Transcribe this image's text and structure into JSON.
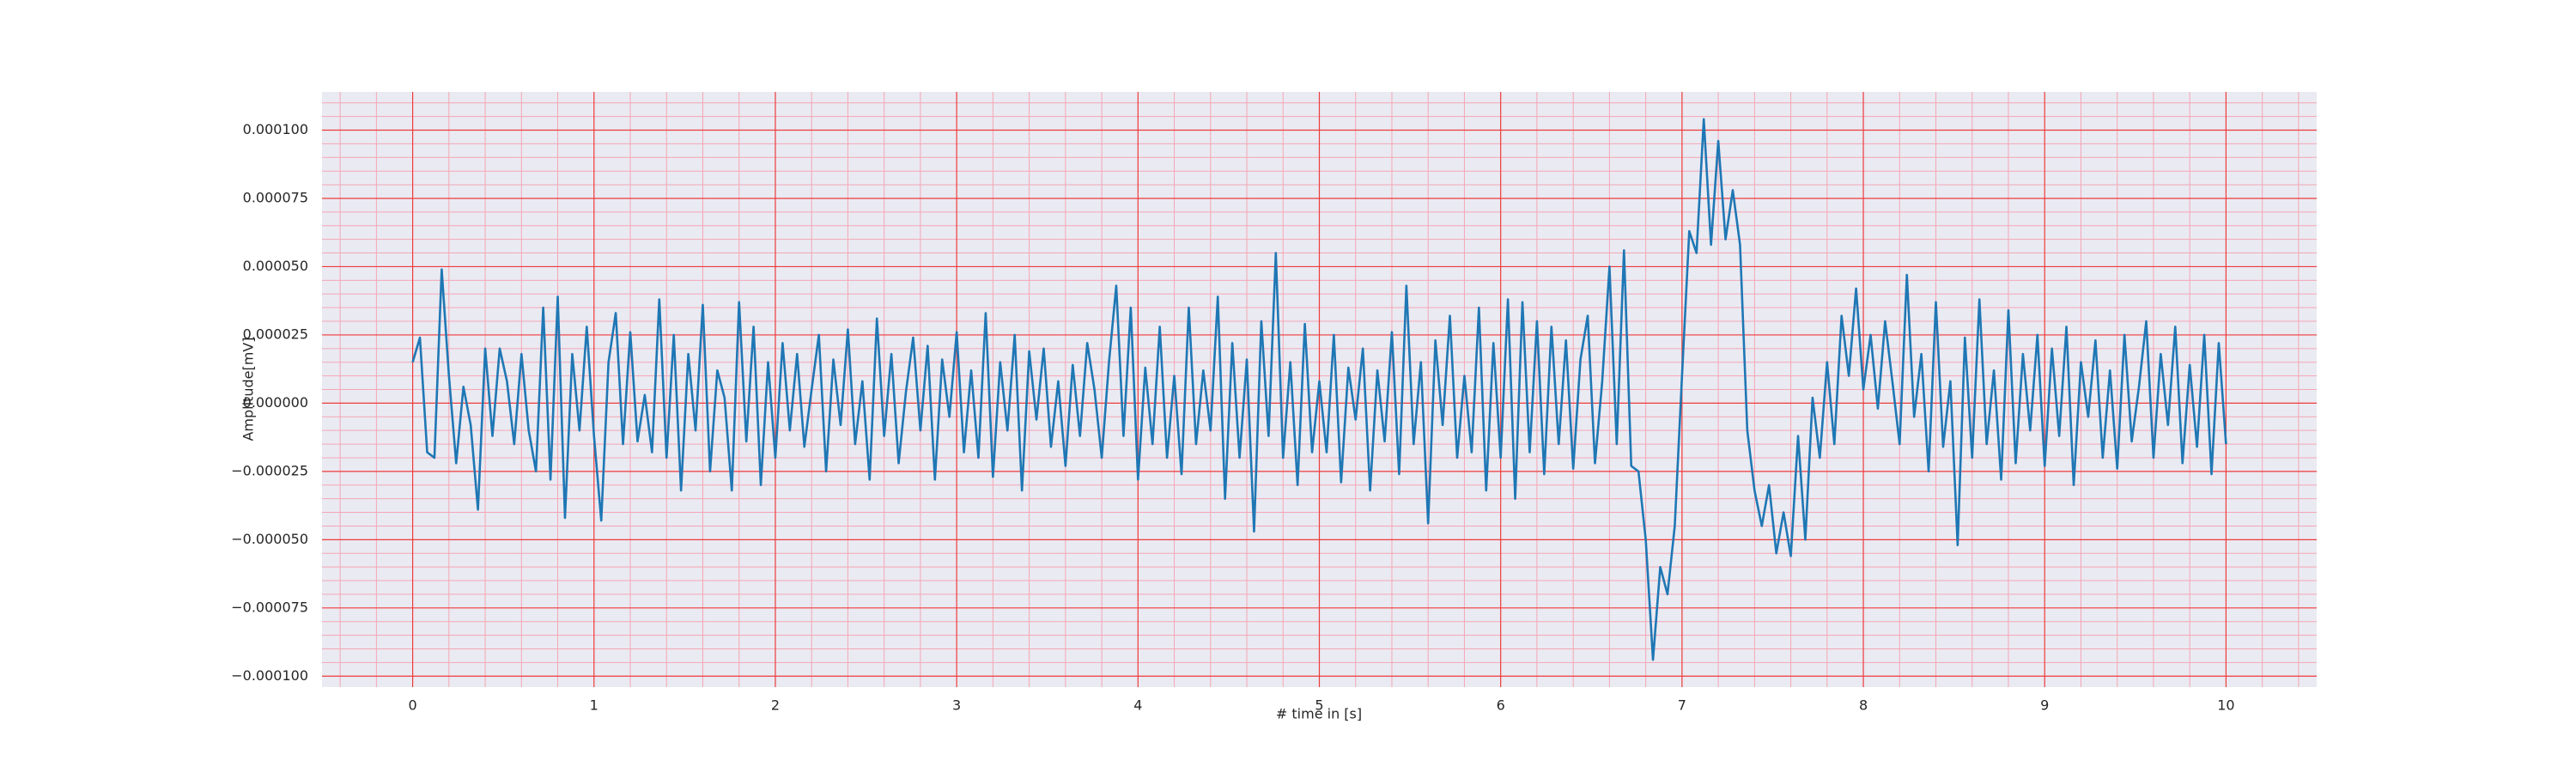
{
  "chart_data": {
    "type": "line",
    "xlabel": "# time in [s]",
    "ylabel": "Amplitude[mV]",
    "color": "#1f77b4",
    "grid": true,
    "minor_grid": true,
    "xlim": [
      -0.5,
      10.5
    ],
    "ylim": [
      -0.000104,
      0.000114
    ],
    "xticks": [
      0,
      1,
      2,
      3,
      4,
      5,
      6,
      7,
      8,
      9,
      10
    ],
    "yticks": [
      {
        "value": -0.0001,
        "label": "−0.000100"
      },
      {
        "value": -7.5e-05,
        "label": "−0.000075"
      },
      {
        "value": -5e-05,
        "label": "−0.000050"
      },
      {
        "value": -2.5e-05,
        "label": "−0.000025"
      },
      {
        "value": 0,
        "label": "0.000000"
      },
      {
        "value": 2.5e-05,
        "label": "0.000025"
      },
      {
        "value": 5e-05,
        "label": "0.000050"
      },
      {
        "value": 7.5e-05,
        "label": "0.000075"
      },
      {
        "value": 0.0001,
        "label": "0.000100"
      }
    ],
    "x": [
      0,
      0.04,
      0.08,
      0.12,
      0.16,
      0.2,
      0.24,
      0.28,
      0.32,
      0.36,
      0.4,
      0.44,
      0.48,
      0.52,
      0.56,
      0.6,
      0.64,
      0.68,
      0.72,
      0.76,
      0.8,
      0.84,
      0.88,
      0.92,
      0.96,
      1,
      1.04,
      1.08,
      1.12,
      1.16,
      1.2,
      1.24,
      1.28,
      1.32,
      1.36,
      1.4,
      1.44,
      1.48,
      1.52,
      1.56,
      1.6,
      1.64,
      1.68,
      1.72,
      1.76,
      1.8,
      1.84,
      1.88,
      1.92,
      1.96,
      2,
      2.04,
      2.08,
      2.12,
      2.16,
      2.2,
      2.24,
      2.28,
      2.32,
      2.36,
      2.4,
      2.44,
      2.48,
      2.52,
      2.56,
      2.6,
      2.64,
      2.68,
      2.72,
      2.76,
      2.8,
      2.84,
      2.88,
      2.92,
      2.96,
      3,
      3.04,
      3.08,
      3.12,
      3.16,
      3.2,
      3.24,
      3.28,
      3.32,
      3.36,
      3.4,
      3.44,
      3.48,
      3.52,
      3.56,
      3.6,
      3.64,
      3.68,
      3.72,
      3.76,
      3.8,
      3.84,
      3.88,
      3.92,
      3.96,
      4,
      4.04,
      4.08,
      4.12,
      4.16,
      4.2,
      4.24,
      4.28,
      4.32,
      4.36,
      4.4,
      4.44,
      4.48,
      4.52,
      4.56,
      4.6,
      4.64,
      4.68,
      4.72,
      4.76,
      4.8,
      4.84,
      4.88,
      4.92,
      4.96,
      5,
      5.04,
      5.08,
      5.12,
      5.16,
      5.2,
      5.24,
      5.28,
      5.32,
      5.36,
      5.4,
      5.44,
      5.48,
      5.52,
      5.56,
      5.6,
      5.64,
      5.68,
      5.72,
      5.76,
      5.8,
      5.84,
      5.88,
      5.92,
      5.96,
      6,
      6.04,
      6.08,
      6.12,
      6.16,
      6.2,
      6.24,
      6.28,
      6.32,
      6.36,
      6.4,
      6.44,
      6.48,
      6.52,
      6.56,
      6.6,
      6.64,
      6.68,
      6.72,
      6.76,
      6.8,
      6.84,
      6.88,
      6.92,
      6.96,
      7,
      7.04,
      7.08,
      7.12,
      7.16,
      7.2,
      7.24,
      7.28,
      7.32,
      7.36,
      7.4,
      7.44,
      7.48,
      7.52,
      7.56,
      7.6,
      7.64,
      7.68,
      7.72,
      7.76,
      7.8,
      7.84,
      7.88,
      7.92,
      7.96,
      8,
      8.04,
      8.08,
      8.12,
      8.16,
      8.2,
      8.24,
      8.28,
      8.32,
      8.36,
      8.4,
      8.44,
      8.48,
      8.52,
      8.56,
      8.6,
      8.64,
      8.68,
      8.72,
      8.76,
      8.8,
      8.84,
      8.88,
      8.92,
      8.96,
      9,
      9.04,
      9.08,
      9.12,
      9.16,
      9.2,
      9.24,
      9.28,
      9.32,
      9.36,
      9.4,
      9.44,
      9.48,
      9.52,
      9.56,
      9.6,
      9.64,
      9.68,
      9.72,
      9.76,
      9.8,
      9.84,
      9.88,
      9.92,
      9.96,
      10
    ],
    "values": [
      1.5e-05,
      2.4e-05,
      -1.8e-05,
      -2e-05,
      4.9e-05,
      1e-05,
      -2.2e-05,
      6e-06,
      -8e-06,
      -3.9e-05,
      2e-05,
      -1.2e-05,
      2e-05,
      8e-06,
      -1.5e-05,
      1.8e-05,
      -1e-05,
      -2.5e-05,
      3.5e-05,
      -2.8e-05,
      3.9e-05,
      -4.2e-05,
      1.8e-05,
      -1e-05,
      2.8e-05,
      -1.2e-05,
      -4.3e-05,
      1.5e-05,
      3.3e-05,
      -1.5e-05,
      2.6e-05,
      -1.4e-05,
      3e-06,
      -1.8e-05,
      3.8e-05,
      -2e-05,
      2.5e-05,
      -3.2e-05,
      1.8e-05,
      -1e-05,
      3.6e-05,
      -2.5e-05,
      1.2e-05,
      2e-06,
      -3.2e-05,
      3.7e-05,
      -1.4e-05,
      2.8e-05,
      -3e-05,
      1.5e-05,
      -2e-05,
      2.2e-05,
      -1e-05,
      1.8e-05,
      -1.6e-05,
      5e-06,
      2.5e-05,
      -2.5e-05,
      1.6e-05,
      -8e-06,
      2.7e-05,
      -1.5e-05,
      8e-06,
      -2.8e-05,
      3.1e-05,
      -1.2e-05,
      1.8e-05,
      -2.2e-05,
      4e-06,
      2.4e-05,
      -1e-05,
      2.1e-05,
      -2.8e-05,
      1.6e-05,
      -5e-06,
      2.6e-05,
      -1.8e-05,
      1.2e-05,
      -2e-05,
      3.3e-05,
      -2.7e-05,
      1.5e-05,
      -1e-05,
      2.5e-05,
      -3.2e-05,
      1.9e-05,
      -6e-06,
      2e-05,
      -1.6e-05,
      8e-06,
      -2.3e-05,
      1.4e-05,
      -1.2e-05,
      2.2e-05,
      5e-06,
      -2e-05,
      1.5e-05,
      4.3e-05,
      -1.2e-05,
      3.5e-05,
      -2.8e-05,
      1.3e-05,
      -1.5e-05,
      2.8e-05,
      -2e-05,
      1e-05,
      -2.6e-05,
      3.5e-05,
      -1.5e-05,
      1.2e-05,
      -1e-05,
      3.9e-05,
      -3.5e-05,
      2.2e-05,
      -2e-05,
      1.6e-05,
      -4.7e-05,
      3e-05,
      -1.2e-05,
      5.5e-05,
      -2e-05,
      1.5e-05,
      -3e-05,
      2.9e-05,
      -1.8e-05,
      8e-06,
      -1.8e-05,
      2.5e-05,
      -2.9e-05,
      1.3e-05,
      -6e-06,
      2e-05,
      -3.2e-05,
      1.2e-05,
      -1.4e-05,
      2.6e-05,
      -2.6e-05,
      4.3e-05,
      -1.5e-05,
      1.5e-05,
      -4.4e-05,
      2.3e-05,
      -8e-06,
      3.2e-05,
      -2e-05,
      1e-05,
      -1.8e-05,
      3.5e-05,
      -3.2e-05,
      2.2e-05,
      -2e-05,
      3.8e-05,
      -3.5e-05,
      3.7e-05,
      -1.8e-05,
      3e-05,
      -2.6e-05,
      2.8e-05,
      -1.5e-05,
      2.3e-05,
      -2.4e-05,
      1.6e-05,
      3.2e-05,
      -2.2e-05,
      8e-06,
      5e-05,
      -1.5e-05,
      5.6e-05,
      -2.3e-05,
      -2.5e-05,
      -5e-05,
      -9.4e-05,
      -6e-05,
      -7e-05,
      -4.5e-05,
      1e-05,
      6.3e-05,
      5.5e-05,
      0.000104,
      5.8e-05,
      9.6e-05,
      6e-05,
      7.8e-05,
      5.8e-05,
      -1e-05,
      -3.2e-05,
      -4.5e-05,
      -3e-05,
      -5.5e-05,
      -4e-05,
      -5.6e-05,
      -1.2e-05,
      -5e-05,
      2e-06,
      -2e-05,
      1.5e-05,
      -1.5e-05,
      3.2e-05,
      1e-05,
      4.2e-05,
      5e-06,
      2.5e-05,
      -2e-06,
      3e-05,
      8e-06,
      -1.5e-05,
      4.7e-05,
      -5e-06,
      1.8e-05,
      -2.5e-05,
      3.7e-05,
      -1.6e-05,
      8e-06,
      -5.2e-05,
      2.4e-05,
      -2e-05,
      3.8e-05,
      -1.5e-05,
      1.2e-05,
      -2.8e-05,
      3.4e-05,
      -2.2e-05,
      1.8e-05,
      -1e-05,
      2.5e-05,
      -2.3e-05,
      2e-05,
      -1.2e-05,
      2.8e-05,
      -3e-05,
      1.5e-05,
      -5e-06,
      2.3e-05,
      -2e-05,
      1.2e-05,
      -2.4e-05,
      2.5e-05,
      -1.4e-05,
      6e-06,
      3e-05,
      -2e-05,
      1.8e-05,
      -8e-06,
      2.8e-05,
      -2.2e-05,
      1.4e-05,
      -1.6e-05,
      2.5e-05,
      -2.6e-05,
      2.2e-05,
      -1.5e-05
    ]
  }
}
